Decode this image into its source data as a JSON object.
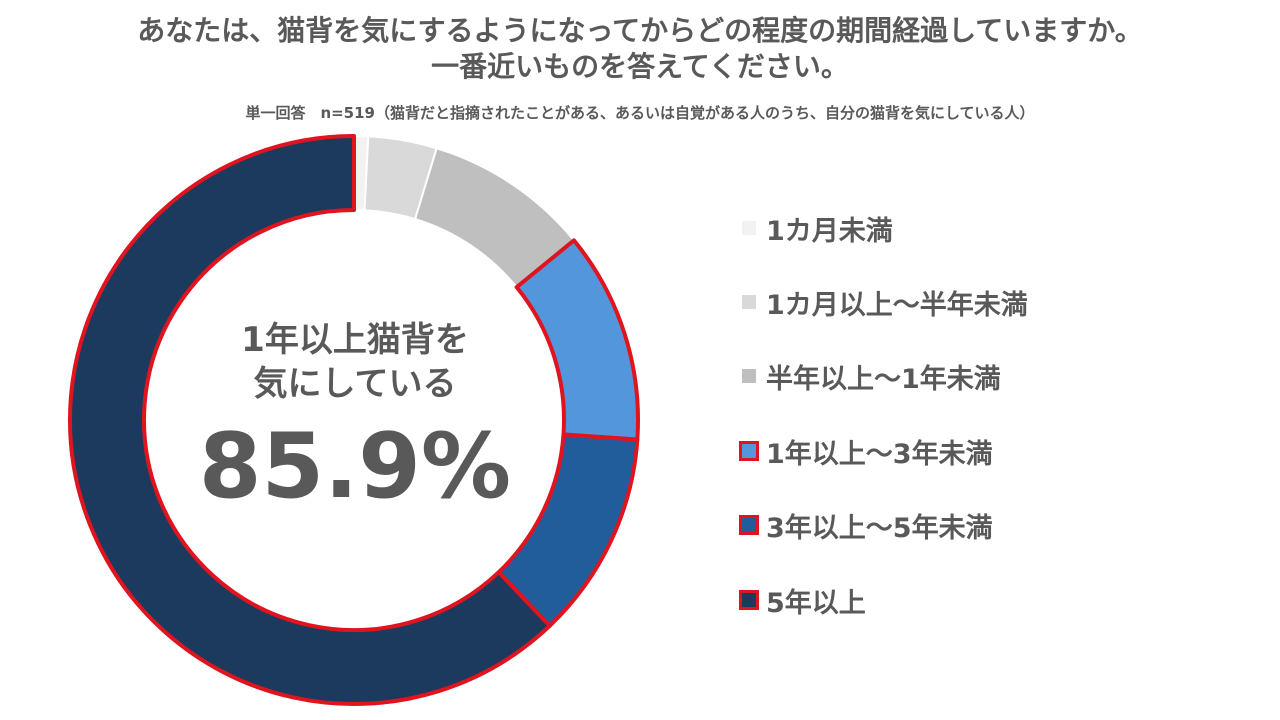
{
  "title_line1": "あなたは、猫背を気にするようになってからどの程度の期間経過していますか。",
  "title_line2": "一番近いものを答えてください。",
  "subtitle": "単一回答　n=519（猫背だと指摘されたことがある、あるいは自覚がある人のうち、自分の猫背を気にしている人）",
  "center_label_line1": "1年以上猫背を",
  "center_label_line2": "気にしている",
  "center_value": "85.9%",
  "colors": {
    "highlight_border": "#e0141e",
    "text": "#595959"
  },
  "chart_data": {
    "type": "donut",
    "title": "あなたは、猫背を気にするようになってからどの程度の期間経過していますか。一番近いものを答えてください。",
    "categories": [
      "1カ月未満",
      "1カ月以上～半年未満",
      "半年以上～1年未満",
      "1年以上～3年未満",
      "3年以上～5年未満",
      "5年以上"
    ],
    "values": [
      0.8,
      3.9,
      9.4,
      12.0,
      11.8,
      62.1
    ],
    "unit": "%",
    "colors": [
      "#f2f2f2",
      "#d9d9d9",
      "#bfbfbf",
      "#5496db",
      "#215d9a",
      "#1b3a5e"
    ],
    "highlighted": [
      false,
      false,
      false,
      true,
      true,
      true
    ],
    "legend_position": "right"
  }
}
